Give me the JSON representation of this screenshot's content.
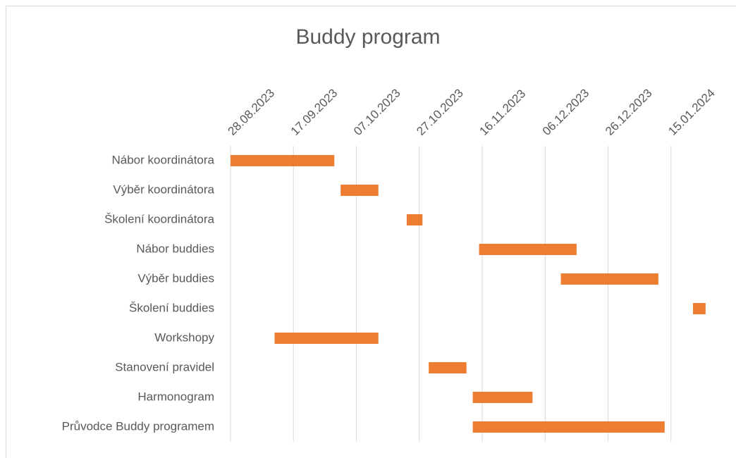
{
  "chart_data": {
    "type": "gantt",
    "title": "Buddy program",
    "categories": [
      "Nábor koordinátora",
      "Výběr koordinátora",
      "Školení koordinátora",
      "Nábor buddies",
      "Výběr buddies",
      "Školení buddies",
      "Workshopy",
      "Stanovení pravidel ",
      "Harmonogram",
      "Průvodce Buddy programem"
    ],
    "starts": [
      45164,
      45199,
      45220,
      45243,
      45269,
      45311,
      45178,
      45227,
      45241,
      45241
    ],
    "durations": [
      33,
      12,
      5,
      31,
      31,
      4,
      33,
      12,
      19,
      61
    ],
    "color": "#ed7d31",
    "xlim": [
      45164,
      45324
    ],
    "xticks": [
      {
        "value": 45164,
        "label": "28.08.2023"
      },
      {
        "value": 45184,
        "label": "17.09.2023"
      },
      {
        "value": 45204,
        "label": "07.10.2023"
      },
      {
        "value": 45224,
        "label": "27.10.2023"
      },
      {
        "value": 45244,
        "label": "16.11.2023"
      },
      {
        "value": 45264,
        "label": "06.12.2023"
      },
      {
        "value": 45284,
        "label": "26.12.2023"
      },
      {
        "value": 45304,
        "label": "15.01.2024"
      }
    ],
    "grid": true
  }
}
